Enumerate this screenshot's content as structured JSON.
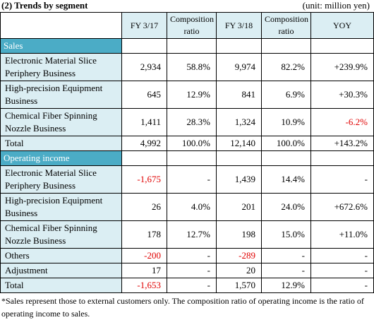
{
  "header": {
    "title": "(2) Trends by segment",
    "unit": "(unit: million yen)"
  },
  "table": {
    "columns": [
      "FY 3/17",
      "Composition ratio",
      "FY 3/18",
      "Composition ratio",
      "YOY"
    ],
    "sections": [
      {
        "title": "Sales",
        "rows": [
          [
            "Electronic Material Slice Periphery Business",
            "2,934",
            "58.8%",
            "9,974",
            "82.2%",
            "+239.9%"
          ],
          [
            "High-precision Equipment Business",
            "645",
            "12.9%",
            "841",
            "6.9%",
            "+30.3%"
          ],
          [
            "Chemical Fiber Spinning Nozzle Business",
            "1,411",
            "28.3%",
            "1,324",
            "10.9%",
            "-6.2%"
          ],
          [
            "Total",
            "4,992",
            "100.0%",
            "12,140",
            "100.0%",
            "+143.2%"
          ]
        ]
      },
      {
        "title": "Operating income",
        "rows": [
          [
            "Electronic Material Slice Periphery Business",
            "-1,675",
            "-",
            "1,439",
            "14.4%",
            "-"
          ],
          [
            "High-precision Equipment Business",
            "26",
            "4.0%",
            "201",
            "24.0%",
            "+672.6%"
          ],
          [
            "Chemical Fiber Spinning Nozzle Business",
            "178",
            "12.7%",
            "198",
            "15.0%",
            "+11.0%"
          ],
          [
            "Others",
            "-200",
            "-",
            "-289",
            "-",
            "-"
          ],
          [
            "Adjustment",
            "17",
            "-",
            "20",
            "-",
            "-"
          ],
          [
            "Total",
            "-1,653",
            "-",
            "1,570",
            "12.9%",
            "-"
          ]
        ]
      }
    ]
  },
  "footnote": "*Sales represent those to external customers only. The composition ratio of operating income is the ratio of operating income to sales."
}
